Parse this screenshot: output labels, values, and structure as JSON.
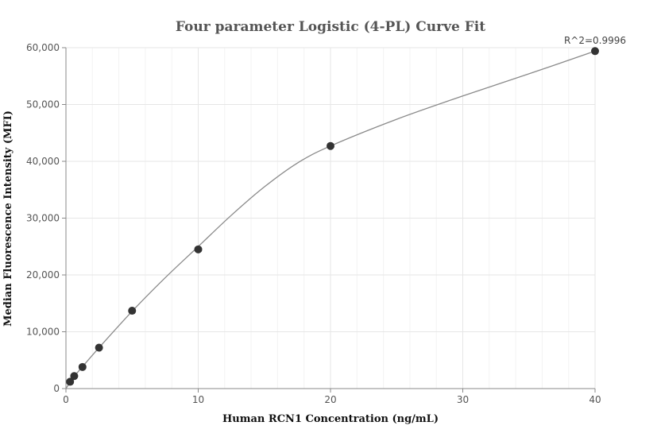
{
  "chart_data": {
    "type": "scatter",
    "title": "Four parameter Logistic (4-PL) Curve Fit",
    "xlabel": "Human RCN1 Concentration (ng/mL)",
    "ylabel": "Median Fluorescence Intensity (MFI)",
    "xlim": [
      0,
      40
    ],
    "ylim": [
      0,
      60000
    ],
    "xticks": [
      0,
      10,
      20,
      30,
      40
    ],
    "xtick_labels": [
      "0",
      "10",
      "20",
      "30",
      "40"
    ],
    "yticks": [
      0,
      10000,
      20000,
      30000,
      40000,
      50000,
      60000
    ],
    "ytick_labels": [
      "0",
      "10,000",
      "20,000",
      "30,000",
      "40,000",
      "50,000",
      "60,000"
    ],
    "grid": true,
    "annotation": "R^2=0.9996",
    "series": [
      {
        "values": [
          {
            "x": 0.3125,
            "y": 1200
          },
          {
            "x": 0.625,
            "y": 2200
          },
          {
            "x": 1.25,
            "y": 3800
          },
          {
            "x": 2.5,
            "y": 7200
          },
          {
            "x": 5,
            "y": 13700
          },
          {
            "x": 10,
            "y": 24500
          },
          {
            "x": 20,
            "y": 42700
          },
          {
            "x": 40,
            "y": 59400
          }
        ]
      }
    ],
    "fit_curve": {
      "x": [
        0,
        0.3125,
        0.625,
        1.25,
        2.5,
        5,
        7.5,
        10,
        12.5,
        15,
        17.5,
        20,
        25,
        30,
        35,
        40
      ],
      "y": [
        0,
        1100,
        2150,
        3850,
        7200,
        13600,
        19500,
        25000,
        30500,
        35500,
        39700,
        42700,
        47400,
        51500,
        55400,
        59400
      ]
    },
    "colors": {
      "points": "#333333",
      "curve": "#8a8a8a",
      "grid": "#e6e6e6"
    }
  }
}
